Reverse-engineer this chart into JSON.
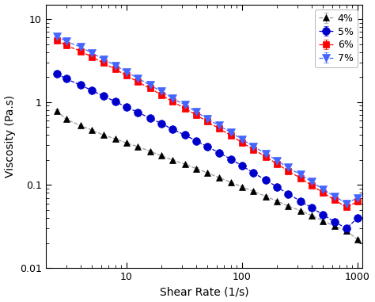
{
  "title": "",
  "xlabel": "Shear Rate (1/s)",
  "ylabel": "Viscosity (Pa.s)",
  "xlim": [
    2,
    1100
  ],
  "ylim": [
    0.01,
    15
  ],
  "series": [
    {
      "label": "4%",
      "color": "#000000",
      "line_color": "#999999",
      "linestyle": "--",
      "marker": "^",
      "markersize": 6,
      "x": [
        2.5,
        3.0,
        4.0,
        5.0,
        6.3,
        8.0,
        10,
        12.5,
        16,
        20,
        25,
        32,
        40,
        50,
        63,
        80,
        100,
        125,
        160,
        200,
        250,
        320,
        400,
        500,
        630,
        800,
        1000
      ],
      "y": [
        0.78,
        0.62,
        0.52,
        0.46,
        0.4,
        0.36,
        0.32,
        0.29,
        0.255,
        0.225,
        0.2,
        0.178,
        0.158,
        0.14,
        0.123,
        0.108,
        0.095,
        0.084,
        0.073,
        0.064,
        0.056,
        0.049,
        0.043,
        0.037,
        0.032,
        0.028,
        0.022
      ],
      "yerr": [
        0.03,
        0.025,
        0.02,
        0.015,
        0.012,
        0.01,
        0.009,
        0.008,
        0.007,
        0.006,
        0.005,
        0.004,
        0.004,
        0.003,
        0.003,
        0.003,
        0.003,
        0.002,
        0.002,
        0.002,
        0.002,
        0.001,
        0.001,
        0.001,
        0.001,
        0.001,
        0.001
      ]
    },
    {
      "label": "5%",
      "color": "#0000CC",
      "line_color": "#0000CC",
      "linestyle": "--",
      "marker": "o",
      "markersize": 7,
      "x": [
        2.5,
        3.0,
        4.0,
        5.0,
        6.3,
        8.0,
        10,
        12.5,
        16,
        20,
        25,
        32,
        40,
        50,
        63,
        80,
        100,
        125,
        160,
        200,
        250,
        320,
        400,
        500,
        630,
        800,
        1000
      ],
      "y": [
        2.2,
        1.9,
        1.6,
        1.38,
        1.18,
        1.01,
        0.87,
        0.75,
        0.64,
        0.55,
        0.47,
        0.4,
        0.34,
        0.29,
        0.245,
        0.205,
        0.17,
        0.14,
        0.115,
        0.095,
        0.078,
        0.064,
        0.053,
        0.044,
        0.036,
        0.03,
        0.04
      ],
      "yerr": [
        0.08,
        0.06,
        0.05,
        0.04,
        0.03,
        0.025,
        0.02,
        0.016,
        0.013,
        0.01,
        0.008,
        0.007,
        0.006,
        0.005,
        0.004,
        0.004,
        0.003,
        0.003,
        0.003,
        0.002,
        0.002,
        0.002,
        0.002,
        0.001,
        0.001,
        0.001,
        0.002
      ]
    },
    {
      "label": "6%",
      "color": "#FF0000",
      "line_color": "#FF0000",
      "linestyle": "--",
      "marker": "s",
      "markersize": 6,
      "x": [
        2.5,
        3.0,
        4.0,
        5.0,
        6.3,
        8.0,
        10,
        12.5,
        16,
        20,
        25,
        32,
        40,
        50,
        63,
        80,
        100,
        125,
        160,
        200,
        250,
        320,
        400,
        500,
        630,
        800,
        1000
      ],
      "y": [
        5.5,
        4.8,
        4.1,
        3.5,
        2.95,
        2.48,
        2.08,
        1.75,
        1.46,
        1.22,
        1.01,
        0.84,
        0.7,
        0.58,
        0.48,
        0.395,
        0.325,
        0.268,
        0.22,
        0.18,
        0.148,
        0.121,
        0.099,
        0.081,
        0.066,
        0.054,
        0.063
      ],
      "yerr": [
        0.2,
        0.16,
        0.13,
        0.11,
        0.09,
        0.075,
        0.062,
        0.052,
        0.043,
        0.036,
        0.03,
        0.025,
        0.021,
        0.017,
        0.014,
        0.012,
        0.01,
        0.008,
        0.007,
        0.006,
        0.005,
        0.004,
        0.003,
        0.003,
        0.002,
        0.002,
        0.003
      ]
    },
    {
      "label": "7%",
      "color": "#4466FF",
      "line_color": "#4466FF",
      "linestyle": "--",
      "marker": "v",
      "markersize": 7,
      "x": [
        2.5,
        3.0,
        4.0,
        5.0,
        6.3,
        8.0,
        10,
        12.5,
        16,
        20,
        25,
        32,
        40,
        50,
        63,
        80,
        100,
        125,
        160,
        200,
        250,
        320,
        400,
        500,
        630,
        800,
        1000
      ],
      "y": [
        6.2,
        5.4,
        4.6,
        3.9,
        3.28,
        2.75,
        2.31,
        1.93,
        1.6,
        1.34,
        1.11,
        0.92,
        0.76,
        0.63,
        0.52,
        0.43,
        0.355,
        0.292,
        0.24,
        0.197,
        0.162,
        0.133,
        0.109,
        0.089,
        0.073,
        0.06,
        0.07
      ],
      "yerr": [
        0.22,
        0.18,
        0.15,
        0.12,
        0.1,
        0.085,
        0.07,
        0.058,
        0.048,
        0.04,
        0.033,
        0.027,
        0.022,
        0.018,
        0.015,
        0.013,
        0.01,
        0.009,
        0.007,
        0.006,
        0.005,
        0.004,
        0.004,
        0.003,
        0.003,
        0.002,
        0.003
      ]
    }
  ],
  "legend_loc": "upper right",
  "background_color": "#ffffff"
}
